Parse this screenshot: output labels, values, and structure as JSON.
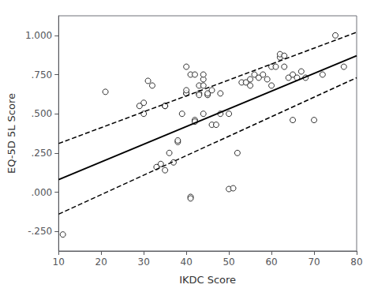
{
  "chart_data": {
    "type": "scatter",
    "xlabel": "IKDC Score",
    "ylabel": "EQ-5D 5L Score",
    "xlim": [
      10,
      80
    ],
    "ylim": [
      -0.375,
      1.125
    ],
    "xticks": [
      10,
      20,
      30,
      40,
      50,
      60,
      70,
      80
    ],
    "yticks": [
      {
        "value": -0.25,
        "label": "-.250"
      },
      {
        "value": 0.0,
        "label": ".000"
      },
      {
        "value": 0.25,
        "label": ".250"
      },
      {
        "value": 0.5,
        "label": ".500"
      },
      {
        "value": 0.75,
        "label": ".750"
      },
      {
        "value": 1.0,
        "label": "1.000"
      }
    ],
    "grid": false,
    "series": [
      {
        "type": "scatter",
        "marker": "circle",
        "color": "black",
        "x": [
          11,
          21,
          30,
          30,
          31,
          32,
          33,
          34,
          35,
          35,
          36,
          37,
          38,
          38,
          39,
          40,
          40,
          40,
          41,
          41,
          42,
          42,
          43,
          43,
          44,
          44,
          44,
          45,
          45,
          46,
          46,
          47,
          48,
          48,
          40,
          41,
          42,
          43,
          44,
          50,
          50,
          51,
          52,
          53,
          54,
          55,
          55,
          56,
          57,
          58,
          59,
          60,
          60,
          61,
          62,
          62,
          63,
          63,
          64,
          65,
          65,
          66,
          67,
          68,
          70,
          72,
          75,
          77,
          29,
          35
        ],
        "values": [
          -0.27,
          0.64,
          0.5,
          0.57,
          0.71,
          0.68,
          0.16,
          0.18,
          0.14,
          0.55,
          0.25,
          0.19,
          0.32,
          0.33,
          0.5,
          0.63,
          0.63,
          0.65,
          -0.03,
          -0.04,
          0.46,
          0.45,
          0.63,
          0.68,
          0.68,
          0.72,
          0.75,
          0.62,
          0.63,
          0.65,
          0.43,
          0.43,
          0.5,
          0.63,
          0.8,
          0.75,
          0.75,
          0.62,
          0.5,
          0.02,
          0.5,
          0.025,
          0.25,
          0.7,
          0.7,
          0.72,
          0.68,
          0.75,
          0.73,
          0.75,
          0.72,
          0.68,
          0.8,
          0.8,
          0.86,
          0.88,
          0.8,
          0.87,
          0.73,
          0.75,
          0.46,
          0.73,
          0.77,
          0.73,
          0.46,
          0.75,
          1.0,
          0.8,
          0.55,
          0.55
        ]
      },
      {
        "type": "line",
        "line_style": "solid",
        "color": "black",
        "x": [
          10,
          80
        ],
        "values": [
          0.08,
          0.87
        ]
      },
      {
        "type": "line",
        "line_style": "dashed",
        "color": "black",
        "x": [
          10,
          80
        ],
        "values": [
          0.31,
          1.02
        ]
      },
      {
        "type": "line",
        "line_style": "dashed",
        "color": "black",
        "x": [
          10,
          80
        ],
        "values": [
          -0.14,
          0.73
        ]
      }
    ]
  }
}
